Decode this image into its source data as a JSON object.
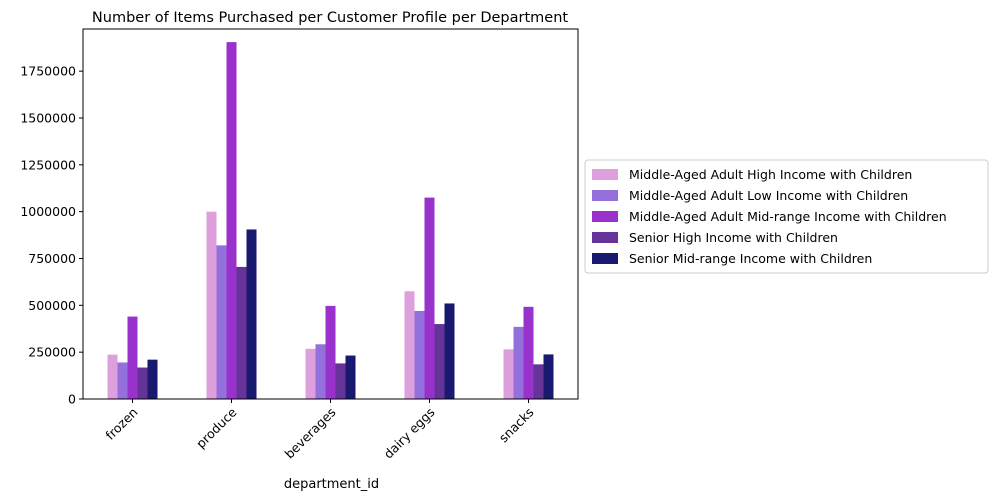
{
  "chart_data": {
    "type": "bar",
    "title": "Number of Items Purchased per Customer Profile per Department",
    "xlabel": "department_id",
    "ylabel": "",
    "categories": [
      "frozen",
      "produce",
      "beverages",
      "dairy eggs",
      "snacks"
    ],
    "ylim": [
      0,
      1975000
    ],
    "yticks": [
      0,
      250000,
      500000,
      750000,
      1000000,
      1250000,
      1500000,
      1750000
    ],
    "legend_position": "right",
    "grid": false,
    "series": [
      {
        "name": "Middle-Aged Adult High Income with Children",
        "color": "#dda0dd",
        "values": [
          237000,
          1000000,
          268000,
          575000,
          265000
        ]
      },
      {
        "name": "Middle-Aged Adult Low Income with Children",
        "color": "#9370db",
        "values": [
          195000,
          820000,
          292000,
          470000,
          385000
        ]
      },
      {
        "name": "Middle-Aged Adult Mid-range Income with Children",
        "color": "#9932cc",
        "values": [
          440000,
          1905000,
          497000,
          1075000,
          492000
        ]
      },
      {
        "name": "Senior High Income with Children",
        "color": "#663399",
        "values": [
          168000,
          705000,
          190000,
          400000,
          185000
        ]
      },
      {
        "name": "Senior Mid-range Income with Children",
        "color": "#191970",
        "values": [
          210000,
          905000,
          232000,
          510000,
          238000
        ]
      }
    ]
  }
}
